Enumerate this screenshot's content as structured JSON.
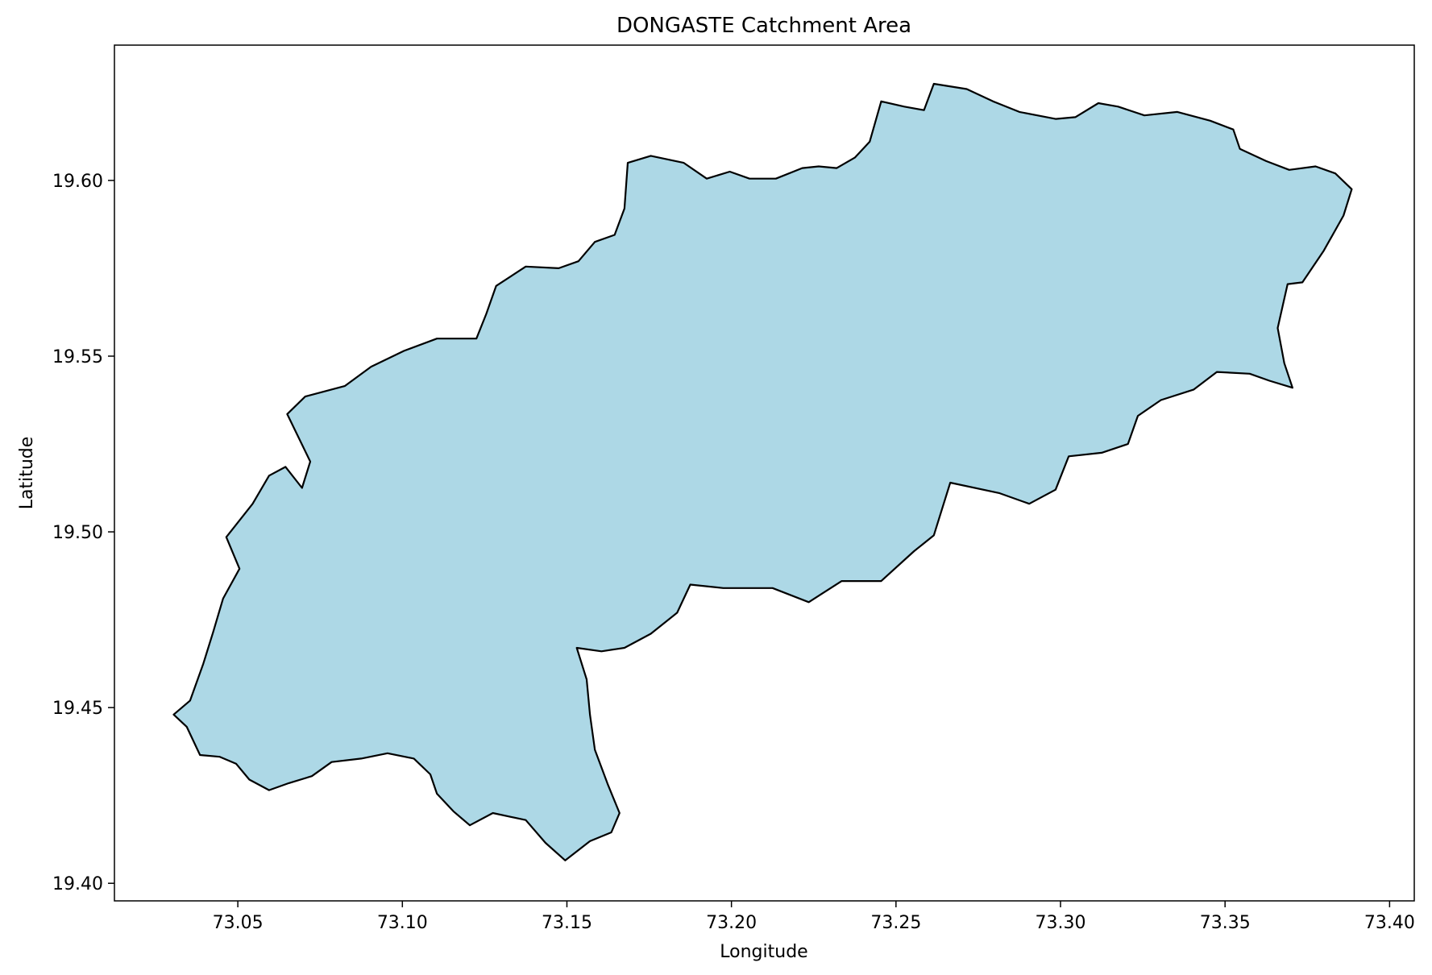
{
  "chart_data": {
    "type": "map",
    "title": "DONGASTE Catchment Area",
    "xlabel": "Longitude",
    "ylabel": "Latitude",
    "xlim": [
      73.0125,
      73.4075
    ],
    "ylim": [
      19.395,
      19.6385
    ],
    "xticks": [
      73.05,
      73.1,
      73.15,
      73.2,
      73.25,
      73.3,
      73.35,
      73.4
    ],
    "xtick_labels": [
      "73.05",
      "73.10",
      "73.15",
      "73.20",
      "73.25",
      "73.30",
      "73.35",
      "73.40"
    ],
    "yticks": [
      19.4,
      19.45,
      19.5,
      19.55,
      19.6
    ],
    "ytick_labels": [
      "19.40",
      "19.45",
      "19.50",
      "19.55",
      "19.60"
    ],
    "grid": false,
    "fill_color": "#add8e6",
    "edge_color": "#000000",
    "boundary": [
      [
        73.0345,
        19.4445
      ],
      [
        73.0385,
        19.4365
      ],
      [
        73.0445,
        19.436
      ],
      [
        73.0495,
        19.434
      ],
      [
        73.0535,
        19.4295
      ],
      [
        73.0595,
        19.4265
      ],
      [
        73.0655,
        19.4285
      ],
      [
        73.0725,
        19.4305
      ],
      [
        73.0785,
        19.4345
      ],
      [
        73.0875,
        19.4355
      ],
      [
        73.0955,
        19.437
      ],
      [
        73.1035,
        19.4355
      ],
      [
        73.1085,
        19.431
      ],
      [
        73.1105,
        19.4255
      ],
      [
        73.1155,
        19.4205
      ],
      [
        73.1205,
        19.4165
      ],
      [
        73.1275,
        19.42
      ],
      [
        73.1375,
        19.418
      ],
      [
        73.1435,
        19.4115
      ],
      [
        73.1495,
        19.4065
      ],
      [
        73.157,
        19.412
      ],
      [
        73.1635,
        19.4145
      ],
      [
        73.166,
        19.42
      ],
      [
        73.1625,
        19.428
      ],
      [
        73.1585,
        19.438
      ],
      [
        73.157,
        19.448
      ],
      [
        73.156,
        19.458
      ],
      [
        73.153,
        19.467
      ],
      [
        73.1605,
        19.466
      ],
      [
        73.1675,
        19.467
      ],
      [
        73.1755,
        19.471
      ],
      [
        73.1835,
        19.477
      ],
      [
        73.1875,
        19.485
      ],
      [
        73.1975,
        19.484
      ],
      [
        73.2125,
        19.484
      ],
      [
        73.2235,
        19.48
      ],
      [
        73.2335,
        19.486
      ],
      [
        73.2455,
        19.486
      ],
      [
        73.2555,
        19.4945
      ],
      [
        73.2615,
        19.499
      ],
      [
        73.2665,
        19.514
      ],
      [
        73.2815,
        19.511
      ],
      [
        73.2905,
        19.508
      ],
      [
        73.2985,
        19.512
      ],
      [
        73.3025,
        19.5215
      ],
      [
        73.3125,
        19.5225
      ],
      [
        73.3205,
        19.525
      ],
      [
        73.3235,
        19.533
      ],
      [
        73.3305,
        19.5375
      ],
      [
        73.3405,
        19.5405
      ],
      [
        73.3475,
        19.5455
      ],
      [
        73.3575,
        19.545
      ],
      [
        73.3635,
        19.543
      ],
      [
        73.3705,
        19.541
      ],
      [
        73.368,
        19.548
      ],
      [
        73.366,
        19.558
      ],
      [
        73.369,
        19.5705
      ],
      [
        73.3735,
        19.571
      ],
      [
        73.38,
        19.58
      ],
      [
        73.386,
        19.59
      ],
      [
        73.3885,
        19.5975
      ],
      [
        73.3835,
        19.602
      ],
      [
        73.3775,
        19.604
      ],
      [
        73.3695,
        19.603
      ],
      [
        73.3625,
        19.6055
      ],
      [
        73.3545,
        19.609
      ],
      [
        73.3525,
        19.6145
      ],
      [
        73.3455,
        19.617
      ],
      [
        73.3355,
        19.6195
      ],
      [
        73.3255,
        19.6185
      ],
      [
        73.3175,
        19.621
      ],
      [
        73.3115,
        19.622
      ],
      [
        73.3045,
        19.618
      ],
      [
        73.2985,
        19.6175
      ],
      [
        73.2875,
        19.6195
      ],
      [
        73.2795,
        19.6225
      ],
      [
        73.2715,
        19.626
      ],
      [
        73.2615,
        19.6275
      ],
      [
        73.2585,
        19.62
      ],
      [
        73.2525,
        19.621
      ],
      [
        73.2455,
        19.6225
      ],
      [
        73.242,
        19.611
      ],
      [
        73.2375,
        19.6065
      ],
      [
        73.232,
        19.6035
      ],
      [
        73.2265,
        19.604
      ],
      [
        73.2215,
        19.6035
      ],
      [
        73.2135,
        19.6005
      ],
      [
        73.2055,
        19.6005
      ],
      [
        73.1995,
        19.6025
      ],
      [
        73.1925,
        19.6005
      ],
      [
        73.1855,
        19.605
      ],
      [
        73.1755,
        19.607
      ],
      [
        73.1685,
        19.605
      ],
      [
        73.1675,
        19.592
      ],
      [
        73.1645,
        19.5845
      ],
      [
        73.1585,
        19.5825
      ],
      [
        73.1535,
        19.577
      ],
      [
        73.1475,
        19.575
      ],
      [
        73.1375,
        19.5755
      ],
      [
        73.1285,
        19.57
      ],
      [
        73.1255,
        19.562
      ],
      [
        73.1225,
        19.555
      ],
      [
        73.1105,
        19.555
      ],
      [
        73.1005,
        19.5515
      ],
      [
        73.0905,
        19.547
      ],
      [
        73.0825,
        19.5415
      ],
      [
        73.0705,
        19.5385
      ],
      [
        73.065,
        19.5335
      ],
      [
        73.072,
        19.52
      ],
      [
        73.0695,
        19.5125
      ],
      [
        73.0645,
        19.5185
      ],
      [
        73.0595,
        19.516
      ],
      [
        73.0545,
        19.508
      ],
      [
        73.0465,
        19.4985
      ],
      [
        73.0505,
        19.4895
      ],
      [
        73.0455,
        19.481
      ],
      [
        73.0425,
        19.4715
      ],
      [
        73.0395,
        19.4625
      ],
      [
        73.0355,
        19.452
      ],
      [
        73.0305,
        19.448
      ]
    ]
  }
}
